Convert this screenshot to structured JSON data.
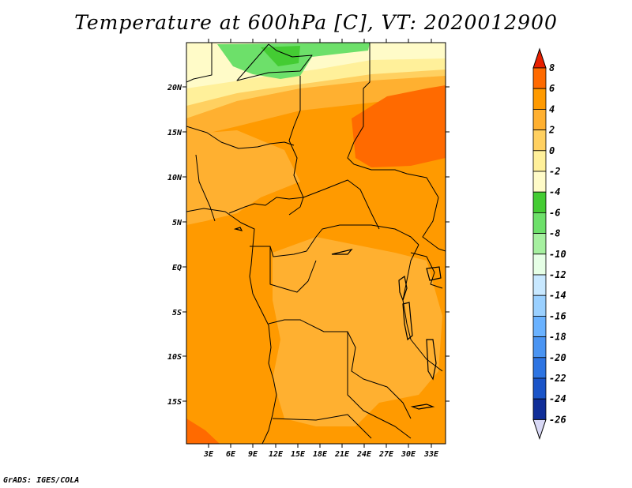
{
  "title": "Temperature at 600hPa [C], VT: 2020012900",
  "credit": "GrADS: IGES/COLA",
  "lat_labels": [
    "20N",
    "15N",
    "10N",
    "5N",
    "EQ",
    "5S",
    "10S",
    "15S"
  ],
  "lon_labels": [
    "3E",
    "6E",
    "9E",
    "12E",
    "15E",
    "18E",
    "21E",
    "24E",
    "27E",
    "30E",
    "33E"
  ],
  "colorbar": {
    "labels": [
      "8",
      "6",
      "4",
      "2",
      "0",
      "-2",
      "-4",
      "-6",
      "-8",
      "-10",
      "-12",
      "-14",
      "-16",
      "-18",
      "-20",
      "-22",
      "-24",
      "-26"
    ],
    "colors": [
      "#ff3b10",
      "#ff6a00",
      "#ff9a00",
      "#ffb030",
      "#ffd060",
      "#fff09a",
      "#fffbc8",
      "#44cc33",
      "#6de06a",
      "#a6f0a0",
      "#e6ffe6",
      "#c8e8ff",
      "#9ad0ff",
      "#6ab2ff",
      "#4a94f2",
      "#2d74e2",
      "#1a54c8",
      "#102e98",
      "#08106a",
      "#d8d8f5"
    ],
    "tip_top": "#e82000",
    "tip_bottom": "#d8d8f5"
  },
  "map_colors": {
    "hot": "#ff6a00",
    "warm": "#ff9a00",
    "mid": "#ffb030",
    "cool": "#ffd060",
    "cooler": "#fff09a",
    "coldest": "#fffbc8",
    "green": "#6de06a",
    "darkgreen": "#44cc33"
  }
}
